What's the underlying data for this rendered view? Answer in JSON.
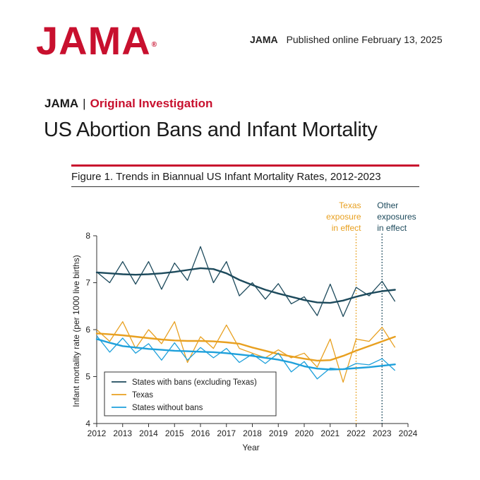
{
  "header": {
    "logo": "JAMA",
    "logo_mark": "®",
    "pub_journal": "JAMA",
    "pub_date": "Published online February 13, 2025"
  },
  "article": {
    "journal": "JAMA",
    "separator": "|",
    "type": "Original Investigation",
    "title": "US Abortion Bans and Infant Mortality"
  },
  "figure": {
    "title": "Figure 1. Trends in Biannual US Infant Mortality Rates, 2012-2023"
  },
  "colors": {
    "accent": "#c8102e",
    "bans": "#1d4a5c",
    "texas": "#e8a020",
    "without": "#1ea0db"
  },
  "chart_data": {
    "type": "line",
    "title": "Figure 1. Trends in Biannual US Infant Mortality Rates, 2012-2023",
    "xlabel": "Year",
    "ylabel": "Infant mortality rate (per 1000 live births)",
    "xlim": [
      2012,
      2024
    ],
    "ylim": [
      4,
      8
    ],
    "xticks": [
      "2012",
      "2013",
      "2014",
      "2015",
      "2016",
      "2017",
      "2018",
      "2019",
      "2020",
      "2021",
      "2022",
      "2023",
      "2024"
    ],
    "yticks": [
      "4",
      "5",
      "6",
      "7",
      "8"
    ],
    "x": [
      2012.0,
      2012.5,
      2013.0,
      2013.5,
      2014.0,
      2014.5,
      2015.0,
      2015.5,
      2016.0,
      2016.5,
      2017.0,
      2017.5,
      2018.0,
      2018.5,
      2019.0,
      2019.5,
      2020.0,
      2020.5,
      2021.0,
      2021.5,
      2022.0,
      2022.5,
      2023.0,
      2023.5
    ],
    "series": [
      {
        "name": "States with bans (excluding Texas)",
        "observed": [
          7.23,
          7.0,
          7.45,
          6.97,
          7.45,
          6.86,
          7.42,
          7.05,
          7.77,
          7.0,
          7.45,
          6.72,
          7.0,
          6.65,
          6.98,
          6.55,
          6.7,
          6.3,
          6.97,
          6.28,
          6.9,
          6.72,
          7.03,
          6.6
        ],
        "trend": [
          7.22,
          7.2,
          7.18,
          7.17,
          7.18,
          7.2,
          7.23,
          7.27,
          7.31,
          7.29,
          7.2,
          7.06,
          6.95,
          6.85,
          6.77,
          6.7,
          6.63,
          6.58,
          6.57,
          6.62,
          6.7,
          6.77,
          6.82,
          6.85
        ]
      },
      {
        "name": "Texas",
        "observed": [
          6.0,
          5.75,
          6.17,
          5.6,
          6.0,
          5.7,
          6.17,
          5.3,
          5.85,
          5.6,
          6.1,
          5.6,
          5.5,
          5.4,
          5.57,
          5.4,
          5.5,
          5.2,
          5.8,
          4.88,
          5.8,
          5.75,
          6.05,
          5.62
        ],
        "trend": [
          5.92,
          5.9,
          5.88,
          5.85,
          5.82,
          5.79,
          5.77,
          5.76,
          5.76,
          5.75,
          5.73,
          5.7,
          5.62,
          5.55,
          5.48,
          5.43,
          5.38,
          5.34,
          5.35,
          5.44,
          5.55,
          5.65,
          5.75,
          5.85
        ]
      },
      {
        "name": "States without bans",
        "observed": [
          5.87,
          5.52,
          5.82,
          5.5,
          5.7,
          5.35,
          5.72,
          5.35,
          5.62,
          5.4,
          5.6,
          5.3,
          5.48,
          5.28,
          5.5,
          5.1,
          5.32,
          4.95,
          5.18,
          5.15,
          5.28,
          5.25,
          5.38,
          5.13
        ],
        "trend": [
          5.8,
          5.72,
          5.65,
          5.62,
          5.59,
          5.57,
          5.55,
          5.54,
          5.53,
          5.52,
          5.5,
          5.47,
          5.44,
          5.4,
          5.36,
          5.3,
          5.22,
          5.17,
          5.15,
          5.16,
          5.18,
          5.2,
          5.23,
          5.26
        ]
      }
    ],
    "annotations": [
      {
        "text_lines": [
          "Texas",
          "exposure",
          "in effect"
        ],
        "x": 2022.0,
        "color_key": "texas"
      },
      {
        "text_lines": [
          "Other",
          "exposures",
          "in effect"
        ],
        "x": 2023.0,
        "color_key": "bans"
      }
    ],
    "legend_position": "bottom-left",
    "grid": false
  }
}
